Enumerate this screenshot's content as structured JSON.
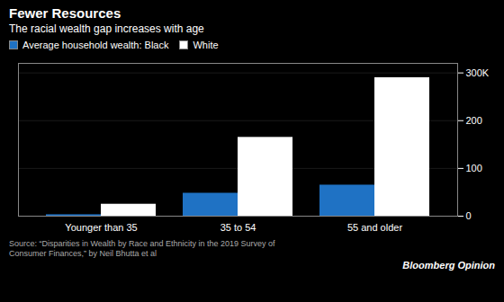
{
  "chart_data": {
    "type": "bar",
    "title": "Fewer Resources",
    "subtitle": "The racial wealth gap increases with age",
    "categories": [
      "Younger than 35",
      "35 to 54",
      "55 and older"
    ],
    "series": [
      {
        "name": "Average household wealth: Black",
        "color": "#1f72c4",
        "values": [
          3,
          48,
          65
        ]
      },
      {
        "name": "White",
        "color": "#ffffff",
        "values": [
          25,
          165,
          290
        ]
      }
    ],
    "ylim": [
      0,
      320
    ],
    "yticks": [
      0,
      100,
      200,
      {
        "value": 300,
        "label": "300K"
      }
    ],
    "grid": true,
    "legend": "top-left",
    "annotations": [
      "Source: “Disparities in Wealth by Race and Ethnicity in the 2019 Survey of\nConsumer Finances,” by Neil Bhutta et al",
      "Bloomberg Opinion"
    ]
  }
}
